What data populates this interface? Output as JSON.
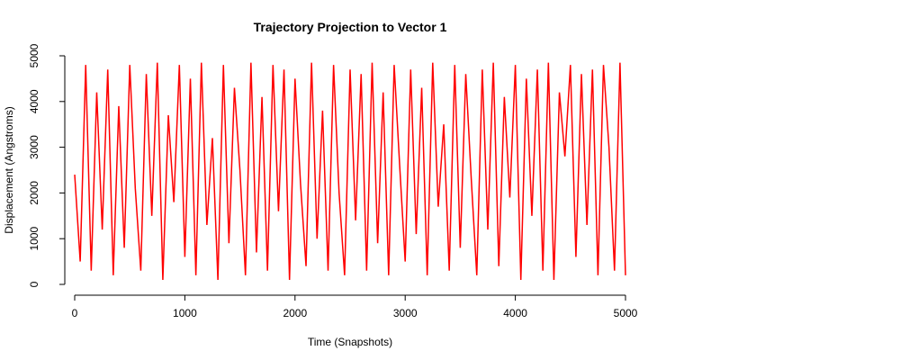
{
  "chart_data": {
    "type": "line",
    "title": "Trajectory Projection to Vector 1",
    "xlabel": "Time (Snapshots)",
    "ylabel": "Displacement (Angstroms)",
    "color": "#ff0000",
    "xlim": [
      0,
      5000
    ],
    "ylim": [
      0,
      5000
    ],
    "xticks": [
      0,
      1000,
      2000,
      3000,
      4000,
      5000
    ],
    "yticks": [
      0,
      1000,
      2000,
      3000,
      4000,
      5000
    ],
    "x": [
      0,
      50,
      100,
      150,
      200,
      250,
      300,
      350,
      400,
      450,
      500,
      550,
      600,
      650,
      700,
      750,
      800,
      850,
      900,
      950,
      1000,
      1050,
      1100,
      1150,
      1200,
      1250,
      1300,
      1350,
      1400,
      1450,
      1500,
      1550,
      1600,
      1650,
      1700,
      1750,
      1800,
      1850,
      1900,
      1950,
      2000,
      2050,
      2100,
      2150,
      2200,
      2250,
      2300,
      2350,
      2400,
      2450,
      2500,
      2550,
      2600,
      2650,
      2700,
      2750,
      2800,
      2850,
      2900,
      2950,
      3000,
      3050,
      3100,
      3150,
      3200,
      3250,
      3300,
      3350,
      3400,
      3450,
      3500,
      3550,
      3600,
      3650,
      3700,
      3750,
      3800,
      3850,
      3900,
      3950,
      4000,
      4050,
      4100,
      4150,
      4200,
      4250,
      4300,
      4350,
      4400,
      4450,
      4500,
      4550,
      4600,
      4650,
      4700,
      4750,
      4800,
      4850,
      4900,
      4950,
      5000
    ],
    "values": [
      2400,
      500,
      4800,
      300,
      4200,
      1200,
      4700,
      200,
      3900,
      800,
      4800,
      2100,
      300,
      4600,
      1500,
      4850,
      100,
      3700,
      1800,
      4800,
      600,
      4500,
      200,
      4850,
      1300,
      3200,
      100,
      4800,
      900,
      4300,
      2500,
      200,
      4850,
      700,
      4100,
      300,
      4800,
      1600,
      4700,
      100,
      4500,
      2200,
      400,
      4850,
      1000,
      3800,
      300,
      4800,
      2000,
      200,
      4700,
      1400,
      4600,
      300,
      4850,
      900,
      4200,
      200,
      4800,
      2600,
      500,
      4700,
      1100,
      4300,
      200,
      4850,
      1700,
      3500,
      300,
      4800,
      800,
      4600,
      2300,
      200,
      4700,
      1200,
      4850,
      400,
      4100,
      1900,
      4800,
      100,
      4500,
      1500,
      4700,
      300,
      4850,
      100,
      4200,
      2800,
      4800,
      600,
      4600,
      1300,
      4700,
      200,
      4800,
      3000,
      300,
      4850,
      200
    ]
  }
}
